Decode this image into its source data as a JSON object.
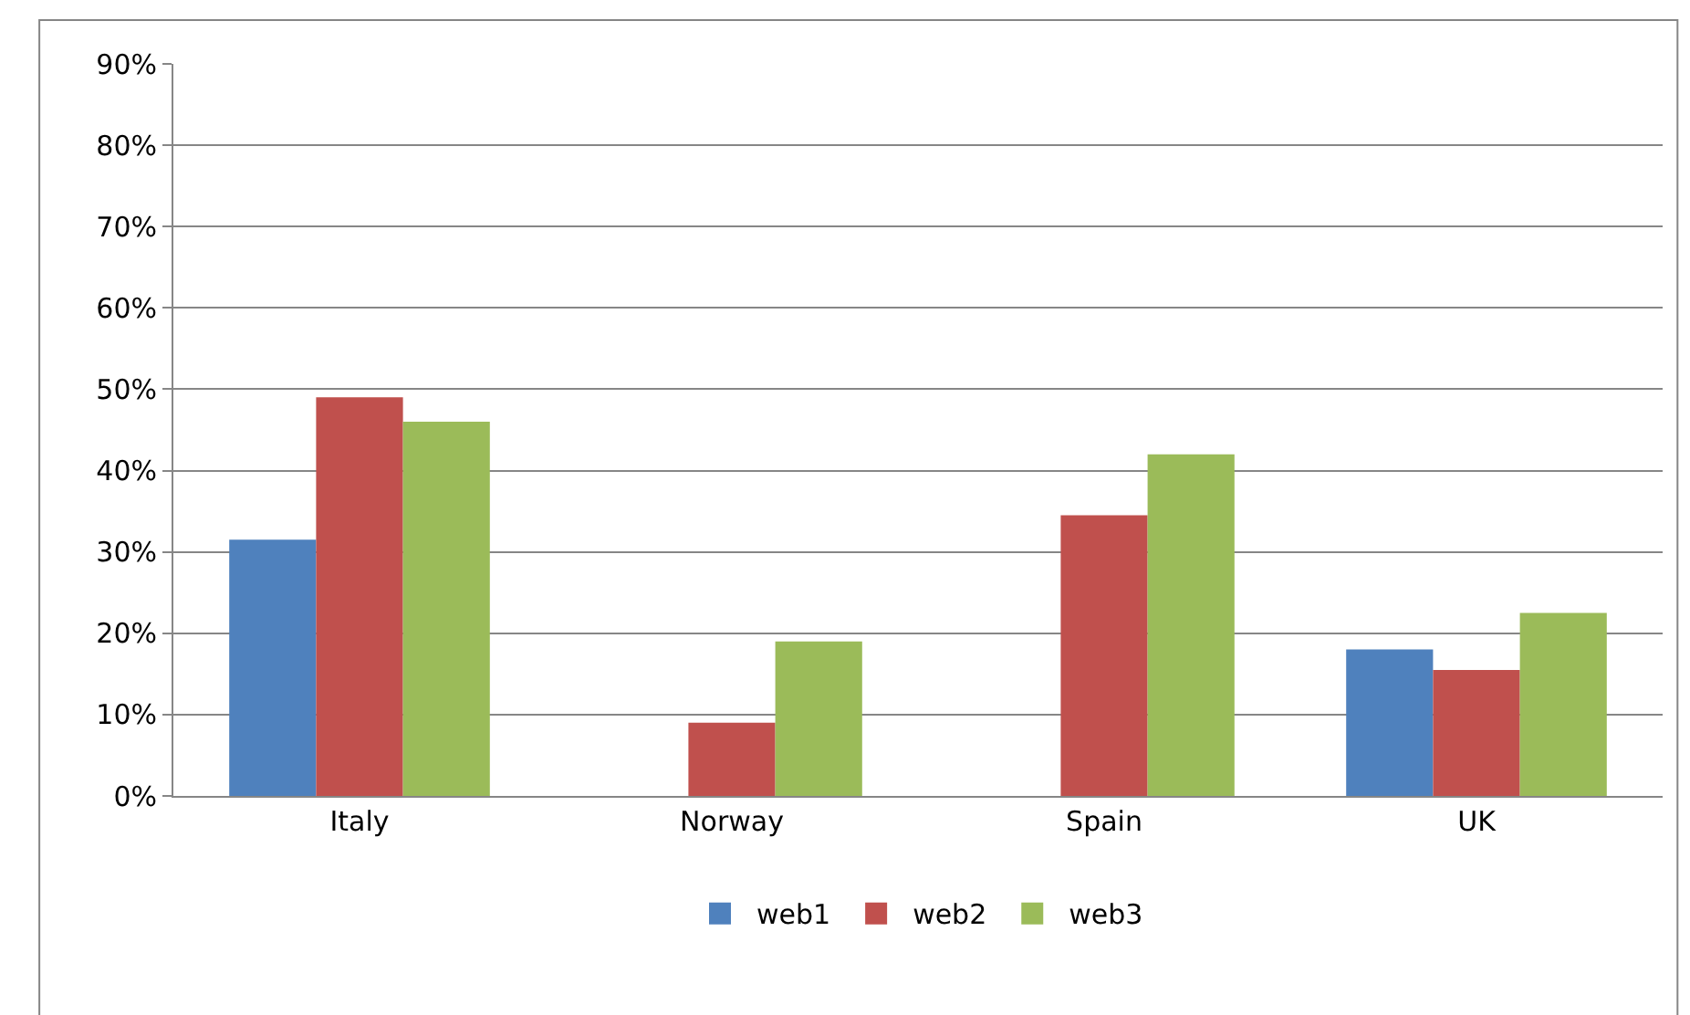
{
  "chart_data": {
    "type": "bar",
    "categories": [
      "Italy",
      "Norway",
      "Spain",
      "UK"
    ],
    "series": [
      {
        "name": "web1",
        "color": "#4f81bd",
        "values": [
          31.5,
          null,
          null,
          18
        ]
      },
      {
        "name": "web2",
        "color": "#c0504d",
        "values": [
          49,
          9,
          34.5,
          15.5
        ]
      },
      {
        "name": "web3",
        "color": "#9bbb59",
        "values": [
          46,
          19,
          42,
          22.5
        ]
      }
    ],
    "ylim": [
      0,
      90
    ],
    "yticks": [
      {
        "value": 0,
        "label": "0%"
      },
      {
        "value": 10,
        "label": "10%"
      },
      {
        "value": 20,
        "label": "20%"
      },
      {
        "value": 30,
        "label": "30%"
      },
      {
        "value": 40,
        "label": "40%"
      },
      {
        "value": 50,
        "label": "50%"
      },
      {
        "value": 60,
        "label": "60%"
      },
      {
        "value": 70,
        "label": "70%"
      },
      {
        "value": 80,
        "label": "80%"
      },
      {
        "value": 90,
        "label": "90%"
      }
    ],
    "grid": "y",
    "legend": "bottom"
  }
}
